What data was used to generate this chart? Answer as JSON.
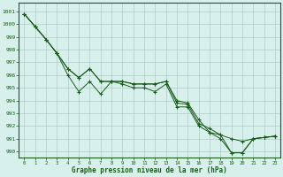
{
  "title": "Graphe pression niveau de la mer (hPa)",
  "bg_color": "#d8f0ec",
  "grid_color": "#b0ccc8",
  "line_color": "#1a5c1a",
  "text_color": "#1a5c1a",
  "xlim": [
    -0.5,
    23.5
  ],
  "ylim": [
    989.5,
    1001.7
  ],
  "yticks": [
    990,
    991,
    992,
    993,
    994,
    995,
    996,
    997,
    998,
    999,
    1000,
    1001
  ],
  "xticks": [
    0,
    1,
    2,
    3,
    4,
    5,
    6,
    7,
    8,
    9,
    10,
    11,
    12,
    13,
    14,
    15,
    16,
    17,
    18,
    19,
    20,
    21,
    22,
    23
  ],
  "line1": [
    1000.8,
    999.8,
    998.8,
    997.7,
    996.5,
    995.8,
    996.5,
    995.5,
    995.5,
    995.5,
    995.3,
    995.3,
    995.3,
    995.5,
    994.0,
    993.8,
    992.5,
    991.5,
    991.3,
    989.9,
    989.9,
    991.0,
    991.1,
    991.2
  ],
  "line2": [
    1000.8,
    999.8,
    998.8,
    997.7,
    996.5,
    995.8,
    996.5,
    995.5,
    995.5,
    995.5,
    995.3,
    995.3,
    995.3,
    995.5,
    993.8,
    993.7,
    992.2,
    991.8,
    991.3,
    991.0,
    990.8,
    991.0,
    991.1,
    991.2
  ],
  "line3": [
    1000.8,
    999.8,
    998.8,
    997.7,
    996.0,
    994.7,
    995.5,
    994.5,
    995.5,
    995.3,
    995.0,
    995.0,
    994.7,
    995.3,
    993.5,
    993.5,
    992.0,
    991.5,
    991.0,
    989.9,
    989.9,
    991.0,
    991.1,
    991.2
  ]
}
